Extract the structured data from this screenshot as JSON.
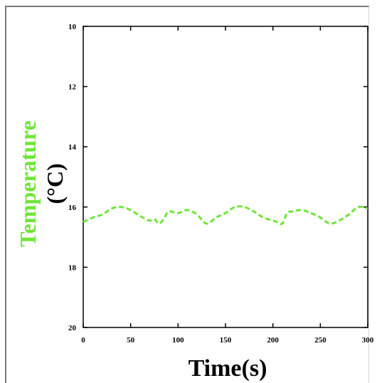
{
  "chart_data": {
    "type": "line",
    "title": "",
    "xlabel": "Time(s)",
    "ylabel": "Temperature",
    "ylabel_unit": "(°C)",
    "xlim": [
      0,
      300
    ],
    "ylim": [
      10,
      20
    ],
    "y_inverted": true,
    "x_ticks": [
      "0",
      "50",
      "100",
      "150",
      "200",
      "250",
      "300"
    ],
    "y_ticks": [
      "10",
      "12",
      "14",
      "16",
      "18",
      "20"
    ],
    "grid": false,
    "legend": "none",
    "series": [
      {
        "line_style": "dashed",
        "color": "#6ee636",
        "x": [
          0,
          10,
          20,
          30,
          40,
          50,
          60,
          70,
          75,
          80,
          85,
          90,
          100,
          110,
          120,
          130,
          140,
          150,
          160,
          170,
          180,
          190,
          200,
          205,
          210,
          215,
          220,
          230,
          240,
          250,
          260,
          270,
          280,
          290,
          300
        ],
        "y": [
          16.5,
          16.35,
          16.25,
          16.05,
          16.0,
          16.1,
          16.3,
          16.45,
          16.4,
          16.55,
          16.4,
          16.15,
          16.2,
          16.1,
          16.25,
          16.55,
          16.35,
          16.2,
          16.0,
          16.0,
          16.15,
          16.35,
          16.45,
          16.5,
          16.55,
          16.2,
          16.15,
          16.1,
          16.2,
          16.35,
          16.55,
          16.45,
          16.25,
          16.0,
          16.05
        ]
      }
    ],
    "colors": {
      "ylabel": "#6ee636",
      "axis": "#000000"
    }
  }
}
